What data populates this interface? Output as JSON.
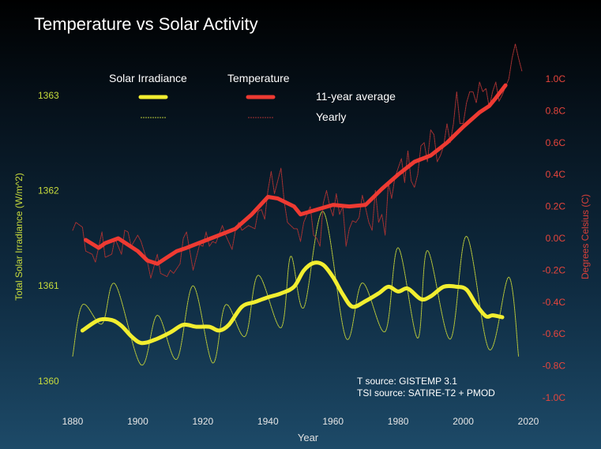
{
  "chart_data": {
    "type": "line",
    "title": "Temperature vs Solar Activity",
    "xlabel": "Year",
    "ylabel_left": "Total Solar Irradiance (W/m^2)",
    "ylabel_right": "Degrees Celsius (C)",
    "xlim": [
      1870,
      2020
    ],
    "ylim_left": [
      1359.8,
      1363.2
    ],
    "ylim_right": [
      -1.0,
      1.2
    ],
    "x_ticks": [
      "1880",
      "1900",
      "1920",
      "1940",
      "1960",
      "1980",
      "2000",
      "2020"
    ],
    "left_ticks": [
      "1363",
      "1362",
      "1361",
      "1360"
    ],
    "right_ticks": [
      "1.0C",
      "0.8C",
      "0.6C",
      "0.4C",
      "0.2C",
      "0.0C",
      "-0.2C",
      "-0.4C",
      "-0.6C",
      "-0.8C",
      "-1.0C"
    ],
    "grid": false,
    "legend": {
      "placement": "top",
      "col_solar": "Solar Irradiance",
      "col_temp": "Temperature",
      "row_avg": "11-year average",
      "row_yearly": "Yearly"
    },
    "annotations": [
      "T source: GISTEMP 3.1",
      "TSI source: SATIRE-T2 + PMOD"
    ],
    "colors": {
      "solar": "#f2ee30",
      "solar_yearly": "#b8c83a",
      "temperature": "#ee3a32",
      "temperature_yearly": "#a83232",
      "left_axis": "#c8dc3c",
      "right_axis": "#e8453c"
    },
    "series": [
      {
        "name": "Solar Irradiance 11-year average",
        "axis": "left",
        "x": [
          1883,
          1888,
          1892,
          1895,
          1898,
          1901,
          1905,
          1910,
          1914,
          1918,
          1922,
          1925,
          1928,
          1932,
          1936,
          1940,
          1944,
          1948,
          1951,
          1954,
          1957,
          1960,
          1963,
          1966,
          1970,
          1974,
          1977,
          1980,
          1983,
          1987,
          1990,
          1994,
          1998,
          2001,
          2004,
          2007,
          2009,
          2012
        ],
        "y": [
          1360.53,
          1360.64,
          1360.64,
          1360.58,
          1360.47,
          1360.4,
          1360.43,
          1360.51,
          1360.59,
          1360.57,
          1360.57,
          1360.53,
          1360.59,
          1360.78,
          1360.83,
          1360.88,
          1360.92,
          1360.99,
          1361.16,
          1361.24,
          1361.22,
          1361.09,
          1360.91,
          1360.78,
          1360.84,
          1360.92,
          1360.99,
          1360.94,
          1360.97,
          1360.86,
          1360.89,
          1360.99,
          1360.99,
          1360.96,
          1360.8,
          1360.68,
          1360.69,
          1360.67
        ]
      },
      {
        "name": "Solar Irradiance Yearly",
        "axis": "left",
        "x": [
          1880,
          1883,
          1889,
          1893,
          1901,
          1906,
          1912,
          1917,
          1923,
          1927,
          1933,
          1937,
          1944,
          1947,
          1951,
          1957,
          1964,
          1969,
          1976,
          1980,
          1986,
          1989,
          1996,
          2001,
          2008,
          2014,
          2017
        ],
        "y": [
          1360.26,
          1360.8,
          1360.6,
          1361.02,
          1360.17,
          1360.69,
          1360.23,
          1361.0,
          1360.19,
          1360.8,
          1360.47,
          1361.11,
          1360.56,
          1361.31,
          1360.77,
          1361.78,
          1360.45,
          1361.03,
          1360.52,
          1361.4,
          1360.45,
          1361.37,
          1360.44,
          1361.52,
          1360.33,
          1361.09,
          1360.26
        ]
      },
      {
        "name": "Temperature 11-year average",
        "axis": "right",
        "x": [
          1884,
          1888,
          1890,
          1894,
          1897,
          1900,
          1903,
          1906,
          1909,
          1912,
          1915,
          1920,
          1925,
          1930,
          1935,
          1940,
          1943,
          1948,
          1950,
          1955,
          1960,
          1965,
          1970,
          1975,
          1980,
          1985,
          1990,
          1995,
          2000,
          2005,
          2008,
          2010,
          2013
        ],
        "y": [
          -0.01,
          -0.06,
          -0.03,
          0.0,
          -0.04,
          -0.08,
          -0.14,
          -0.16,
          -0.12,
          -0.08,
          -0.06,
          -0.02,
          0.02,
          0.06,
          0.15,
          0.26,
          0.25,
          0.2,
          0.15,
          0.18,
          0.21,
          0.2,
          0.21,
          0.31,
          0.4,
          0.48,
          0.52,
          0.6,
          0.7,
          0.79,
          0.83,
          0.88,
          0.96
        ]
      },
      {
        "name": "Temperature Yearly",
        "axis": "right",
        "x": [
          1880,
          1881,
          1883,
          1884,
          1886,
          1887,
          1889,
          1890,
          1892,
          1893,
          1895,
          1896,
          1897,
          1898,
          1900,
          1901,
          1903,
          1904,
          1906,
          1907,
          1909,
          1910,
          1911,
          1913,
          1914,
          1915,
          1916,
          1917,
          1918,
          1919,
          1920,
          1921,
          1922,
          1923,
          1924,
          1926,
          1927,
          1929,
          1930,
          1931,
          1932,
          1934,
          1936,
          1937,
          1938,
          1939,
          1940,
          1941,
          1942,
          1944,
          1945,
          1946,
          1948,
          1949,
          1950,
          1951,
          1953,
          1954,
          1955,
          1956,
          1957,
          1958,
          1959,
          1960,
          1961,
          1962,
          1963,
          1964,
          1965,
          1966,
          1967,
          1968,
          1969,
          1970,
          1971,
          1972,
          1973,
          1974,
          1975,
          1976,
          1977,
          1978,
          1979,
          1980,
          1981,
          1982,
          1983,
          1984,
          1985,
          1986,
          1987,
          1988,
          1989,
          1990,
          1991,
          1992,
          1993,
          1994,
          1995,
          1996,
          1997,
          1998,
          1999,
          2000,
          2001,
          2002,
          2003,
          2004,
          2005,
          2006,
          2007,
          2008,
          2009,
          2010,
          2011,
          2012,
          2013,
          2014,
          2015,
          2016,
          2017,
          2018
        ],
        "y": [
          0.05,
          0.1,
          0.07,
          -0.08,
          -0.1,
          -0.15,
          0.04,
          -0.12,
          -0.1,
          0.0,
          -0.1,
          0.05,
          0.04,
          -0.05,
          0.02,
          -0.02,
          -0.15,
          -0.25,
          -0.1,
          -0.22,
          -0.24,
          -0.2,
          -0.22,
          -0.16,
          0.0,
          0.04,
          -0.08,
          -0.2,
          -0.12,
          -0.04,
          -0.05,
          0.04,
          -0.05,
          -0.02,
          -0.03,
          0.08,
          0.02,
          -0.07,
          0.05,
          0.1,
          0.05,
          0.08,
          0.06,
          0.17,
          0.18,
          0.12,
          0.3,
          0.42,
          0.28,
          0.44,
          0.23,
          0.1,
          0.06,
          0.06,
          -0.02,
          0.1,
          0.2,
          0.02,
          0.0,
          -0.05,
          0.22,
          0.3,
          0.2,
          0.14,
          0.28,
          0.15,
          0.2,
          -0.05,
          0.06,
          0.11,
          0.1,
          0.13,
          0.27,
          0.19,
          0.1,
          0.05,
          0.3,
          0.1,
          0.15,
          0.02,
          0.35,
          0.25,
          0.38,
          0.44,
          0.5,
          0.35,
          0.55,
          0.36,
          0.32,
          0.4,
          0.58,
          0.6,
          0.48,
          0.68,
          0.65,
          0.48,
          0.52,
          0.58,
          0.72,
          0.6,
          0.72,
          0.92,
          0.72,
          0.72,
          0.85,
          0.92,
          0.92,
          0.85,
          0.98,
          0.92,
          0.94,
          0.82,
          0.92,
          0.98,
          0.86,
          0.9,
          0.95,
          1.0,
          1.13,
          1.22,
          1.13,
          1.05
        ]
      }
    ]
  }
}
